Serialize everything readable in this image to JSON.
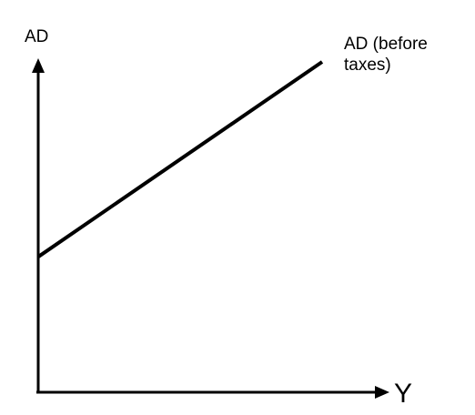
{
  "chart_data": {
    "type": "line",
    "ylabel": "AD",
    "xlabel": "Y",
    "series": [
      {
        "name": "AD (before taxes)",
        "name_lines": [
          "AD (before",
          "taxes)"
        ],
        "x": [
          0,
          100
        ],
        "y": [
          41,
          100
        ]
      }
    ],
    "xlim": [
      0,
      100
    ],
    "ylim": [
      0,
      100
    ],
    "grid": false,
    "ticks": false,
    "line_color": "#000000",
    "axis_color": "#000000"
  }
}
